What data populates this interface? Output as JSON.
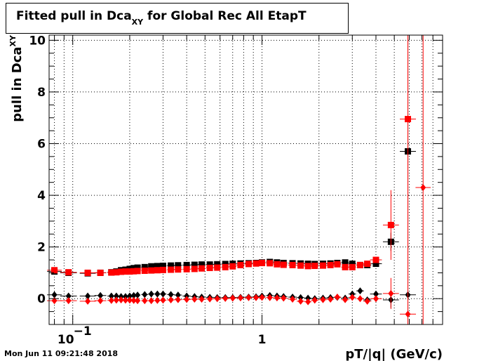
{
  "chart_data": {
    "type": "scatter",
    "title_main": "Fitted pull in Dca",
    "title_sub": "XY",
    "title_rest": " for Global Rec All EtapT",
    "xlabel": "pT/|q| (GeV/c)",
    "ylabel_main": "pull in Dca",
    "ylabel_sub": "XY",
    "xscale": "log",
    "xlim": [
      0.075,
      9.0
    ],
    "ylim": [
      -1.0,
      10.2
    ],
    "grid": true,
    "xticks_major": [
      {
        "value": 0.1,
        "base": "10",
        "exp": "−1"
      },
      {
        "value": 1,
        "label": "1"
      }
    ],
    "yticks": [
      0,
      2,
      4,
      6,
      8,
      10
    ],
    "series": [
      {
        "color": "#000000",
        "marker": "square",
        "points": [
          {
            "x": 0.08,
            "y": 1.05
          },
          {
            "x": 0.095,
            "y": 1.0
          },
          {
            "x": 0.12,
            "y": 0.98
          },
          {
            "x": 0.14,
            "y": 1.0
          },
          {
            "x": 0.16,
            "y": 1.02
          },
          {
            "x": 0.17,
            "y": 1.05
          },
          {
            "x": 0.18,
            "y": 1.1
          },
          {
            "x": 0.19,
            "y": 1.12
          },
          {
            "x": 0.2,
            "y": 1.15
          },
          {
            "x": 0.21,
            "y": 1.18
          },
          {
            "x": 0.22,
            "y": 1.2
          },
          {
            "x": 0.24,
            "y": 1.22
          },
          {
            "x": 0.26,
            "y": 1.25
          },
          {
            "x": 0.28,
            "y": 1.26
          },
          {
            "x": 0.3,
            "y": 1.27
          },
          {
            "x": 0.33,
            "y": 1.28
          },
          {
            "x": 0.36,
            "y": 1.29
          },
          {
            "x": 0.4,
            "y": 1.3
          },
          {
            "x": 0.44,
            "y": 1.31
          },
          {
            "x": 0.48,
            "y": 1.32
          },
          {
            "x": 0.53,
            "y": 1.32
          },
          {
            "x": 0.58,
            "y": 1.33
          },
          {
            "x": 0.64,
            "y": 1.34
          },
          {
            "x": 0.7,
            "y": 1.35
          },
          {
            "x": 0.77,
            "y": 1.36
          },
          {
            "x": 0.85,
            "y": 1.37
          },
          {
            "x": 0.93,
            "y": 1.38
          },
          {
            "x": 1.0,
            "y": 1.4
          },
          {
            "x": 1.1,
            "y": 1.42
          },
          {
            "x": 1.2,
            "y": 1.4
          },
          {
            "x": 1.3,
            "y": 1.38
          },
          {
            "x": 1.45,
            "y": 1.37
          },
          {
            "x": 1.6,
            "y": 1.36
          },
          {
            "x": 1.75,
            "y": 1.35
          },
          {
            "x": 1.9,
            "y": 1.34
          },
          {
            "x": 2.1,
            "y": 1.35
          },
          {
            "x": 2.3,
            "y": 1.36
          },
          {
            "x": 2.5,
            "y": 1.38
          },
          {
            "x": 2.75,
            "y": 1.4
          },
          {
            "x": 3.0,
            "y": 1.35
          },
          {
            "x": 3.3,
            "y": 1.3
          },
          {
            "x": 3.6,
            "y": 1.3
          },
          {
            "x": 4.0,
            "y": 1.35
          },
          {
            "x": 4.8,
            "y": 2.2,
            "yerr": 0.35
          },
          {
            "x": 5.9,
            "y": 5.7,
            "yerr": 0.6
          }
        ]
      },
      {
        "color": "#ff0000",
        "marker": "square",
        "points": [
          {
            "x": 0.08,
            "y": 1.1
          },
          {
            "x": 0.095,
            "y": 1.02
          },
          {
            "x": 0.12,
            "y": 1.0
          },
          {
            "x": 0.14,
            "y": 1.0
          },
          {
            "x": 0.16,
            "y": 1.01
          },
          {
            "x": 0.17,
            "y": 1.02
          },
          {
            "x": 0.18,
            "y": 1.04
          },
          {
            "x": 0.19,
            "y": 1.05
          },
          {
            "x": 0.2,
            "y": 1.05
          },
          {
            "x": 0.21,
            "y": 1.06
          },
          {
            "x": 0.22,
            "y": 1.07
          },
          {
            "x": 0.24,
            "y": 1.08
          },
          {
            "x": 0.26,
            "y": 1.09
          },
          {
            "x": 0.28,
            "y": 1.1
          },
          {
            "x": 0.3,
            "y": 1.11
          },
          {
            "x": 0.33,
            "y": 1.12
          },
          {
            "x": 0.36,
            "y": 1.13
          },
          {
            "x": 0.4,
            "y": 1.14
          },
          {
            "x": 0.44,
            "y": 1.15
          },
          {
            "x": 0.48,
            "y": 1.17
          },
          {
            "x": 0.53,
            "y": 1.19
          },
          {
            "x": 0.58,
            "y": 1.2
          },
          {
            "x": 0.64,
            "y": 1.22
          },
          {
            "x": 0.7,
            "y": 1.25
          },
          {
            "x": 0.77,
            "y": 1.3
          },
          {
            "x": 0.85,
            "y": 1.34
          },
          {
            "x": 0.93,
            "y": 1.36
          },
          {
            "x": 1.0,
            "y": 1.38
          },
          {
            "x": 1.1,
            "y": 1.37
          },
          {
            "x": 1.2,
            "y": 1.33
          },
          {
            "x": 1.3,
            "y": 1.31
          },
          {
            "x": 1.45,
            "y": 1.3
          },
          {
            "x": 1.6,
            "y": 1.28
          },
          {
            "x": 1.75,
            "y": 1.26
          },
          {
            "x": 1.9,
            "y": 1.27
          },
          {
            "x": 2.1,
            "y": 1.28
          },
          {
            "x": 2.3,
            "y": 1.3
          },
          {
            "x": 2.5,
            "y": 1.33
          },
          {
            "x": 2.75,
            "y": 1.22
          },
          {
            "x": 3.0,
            "y": 1.22
          },
          {
            "x": 3.3,
            "y": 1.3
          },
          {
            "x": 3.6,
            "y": 1.35
          },
          {
            "x": 4.0,
            "y": 1.5
          },
          {
            "x": 4.8,
            "y": 2.85,
            "yerr": 1.35
          },
          {
            "x": 5.9,
            "y": 6.95,
            "yerr": 12
          }
        ]
      },
      {
        "color": "#000000",
        "marker": "diamond",
        "points": [
          {
            "x": 0.08,
            "y": 0.15
          },
          {
            "x": 0.095,
            "y": 0.1
          },
          {
            "x": 0.12,
            "y": 0.1
          },
          {
            "x": 0.14,
            "y": 0.12
          },
          {
            "x": 0.16,
            "y": 0.1
          },
          {
            "x": 0.17,
            "y": 0.1
          },
          {
            "x": 0.18,
            "y": 0.08
          },
          {
            "x": 0.19,
            "y": 0.08
          },
          {
            "x": 0.2,
            "y": 0.1
          },
          {
            "x": 0.21,
            "y": 0.12
          },
          {
            "x": 0.22,
            "y": 0.14
          },
          {
            "x": 0.24,
            "y": 0.16
          },
          {
            "x": 0.26,
            "y": 0.18
          },
          {
            "x": 0.28,
            "y": 0.18
          },
          {
            "x": 0.3,
            "y": 0.18
          },
          {
            "x": 0.33,
            "y": 0.16
          },
          {
            "x": 0.36,
            "y": 0.14
          },
          {
            "x": 0.4,
            "y": 0.1
          },
          {
            "x": 0.44,
            "y": 0.08
          },
          {
            "x": 0.48,
            "y": 0.06
          },
          {
            "x": 0.53,
            "y": 0.05
          },
          {
            "x": 0.58,
            "y": 0.04
          },
          {
            "x": 0.64,
            "y": 0.04
          },
          {
            "x": 0.7,
            "y": 0.04
          },
          {
            "x": 0.77,
            "y": 0.05
          },
          {
            "x": 0.85,
            "y": 0.06
          },
          {
            "x": 0.93,
            "y": 0.07
          },
          {
            "x": 1.0,
            "y": 0.1
          },
          {
            "x": 1.1,
            "y": 0.12
          },
          {
            "x": 1.2,
            "y": 0.1
          },
          {
            "x": 1.3,
            "y": 0.08
          },
          {
            "x": 1.45,
            "y": 0.06
          },
          {
            "x": 1.6,
            "y": 0.04
          },
          {
            "x": 1.75,
            "y": 0.02
          },
          {
            "x": 1.9,
            "y": 0.0
          },
          {
            "x": 2.1,
            "y": 0.02
          },
          {
            "x": 2.3,
            "y": 0.04
          },
          {
            "x": 2.5,
            "y": 0.05
          },
          {
            "x": 2.75,
            "y": 0.02
          },
          {
            "x": 3.0,
            "y": 0.18
          },
          {
            "x": 3.3,
            "y": 0.3
          },
          {
            "x": 3.6,
            "y": -0.05
          },
          {
            "x": 4.0,
            "y": 0.18
          },
          {
            "x": 4.8,
            "y": -0.05,
            "yerr": 0.3
          },
          {
            "x": 5.9,
            "y": 0.15,
            "yerr": 12
          }
        ]
      },
      {
        "color": "#ff0000",
        "marker": "diamond",
        "points": [
          {
            "x": 0.08,
            "y": -0.08
          },
          {
            "x": 0.095,
            "y": -0.08
          },
          {
            "x": 0.12,
            "y": -0.1
          },
          {
            "x": 0.14,
            "y": -0.08
          },
          {
            "x": 0.16,
            "y": -0.07
          },
          {
            "x": 0.17,
            "y": -0.06
          },
          {
            "x": 0.18,
            "y": -0.05
          },
          {
            "x": 0.19,
            "y": -0.06
          },
          {
            "x": 0.2,
            "y": -0.06
          },
          {
            "x": 0.21,
            "y": -0.07
          },
          {
            "x": 0.22,
            "y": -0.08
          },
          {
            "x": 0.24,
            "y": -0.08
          },
          {
            "x": 0.26,
            "y": -0.08
          },
          {
            "x": 0.28,
            "y": -0.07
          },
          {
            "x": 0.3,
            "y": -0.06
          },
          {
            "x": 0.33,
            "y": -0.05
          },
          {
            "x": 0.36,
            "y": -0.04
          },
          {
            "x": 0.4,
            "y": -0.03
          },
          {
            "x": 0.44,
            "y": -0.02
          },
          {
            "x": 0.48,
            "y": -0.02
          },
          {
            "x": 0.53,
            "y": -0.01
          },
          {
            "x": 0.58,
            "y": 0.0
          },
          {
            "x": 0.64,
            "y": 0.01
          },
          {
            "x": 0.7,
            "y": 0.02
          },
          {
            "x": 0.77,
            "y": 0.03
          },
          {
            "x": 0.85,
            "y": 0.04
          },
          {
            "x": 0.93,
            "y": 0.04
          },
          {
            "x": 1.0,
            "y": 0.05
          },
          {
            "x": 1.1,
            "y": 0.04
          },
          {
            "x": 1.2,
            "y": 0.03
          },
          {
            "x": 1.3,
            "y": 0.02
          },
          {
            "x": 1.45,
            "y": -0.02
          },
          {
            "x": 1.6,
            "y": -0.1
          },
          {
            "x": 1.75,
            "y": -0.12
          },
          {
            "x": 1.9,
            "y": -0.06
          },
          {
            "x": 2.1,
            "y": -0.04
          },
          {
            "x": 2.3,
            "y": -0.02
          },
          {
            "x": 2.5,
            "y": 0.06
          },
          {
            "x": 2.75,
            "y": -0.04
          },
          {
            "x": 3.0,
            "y": 0.05
          },
          {
            "x": 3.3,
            "y": 0.0
          },
          {
            "x": 3.6,
            "y": -0.1
          },
          {
            "x": 4.0,
            "y": 0.0
          },
          {
            "x": 4.8,
            "y": 0.2,
            "yerr": 0.6
          },
          {
            "x": 5.9,
            "y": -0.6,
            "yerr": 12
          },
          {
            "x": 7.1,
            "y": 4.3,
            "yerr": 12
          }
        ]
      }
    ]
  },
  "footer": {
    "timestamp": "Mon Jun 11 09:21:48 2018"
  }
}
